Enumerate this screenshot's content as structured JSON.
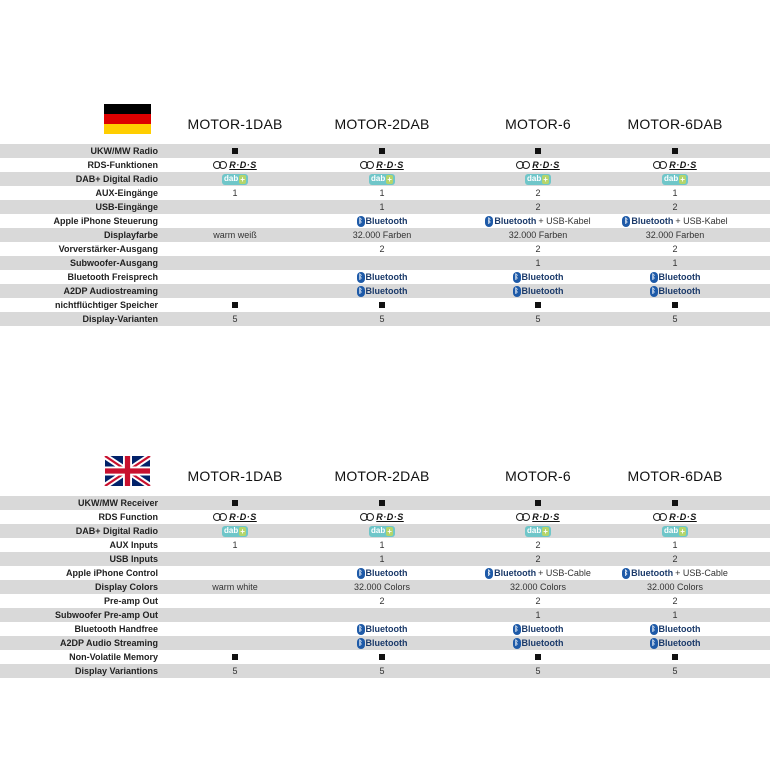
{
  "icons": {
    "square": "square-bullet-icon",
    "rds": "rds-logo-icon",
    "dab": "dab-plus-logo-icon",
    "bluetooth": "bluetooth-logo-icon"
  },
  "logo_text": {
    "rds": "R·D·S",
    "dab": "dab",
    "dab_plus": "+",
    "bluetooth": "Bluetooth"
  },
  "colors": {
    "row_shade": "#d9d9d9",
    "dab": "#6fc6c9",
    "bluetooth": "#1e5aa8"
  },
  "tables": [
    {
      "id": "de",
      "flag": "germany-flag-icon",
      "models": [
        "MOTOR-1DAB",
        "MOTOR-2DAB",
        "MOTOR-6",
        "MOTOR-6DAB"
      ],
      "rows": [
        {
          "label": "UKW/MW Radio",
          "cells": [
            {
              "t": "sq"
            },
            {
              "t": "sq"
            },
            {
              "t": "sq"
            },
            {
              "t": "sq"
            }
          ]
        },
        {
          "label": "RDS-Funktionen",
          "cells": [
            {
              "t": "rds"
            },
            {
              "t": "rds"
            },
            {
              "t": "rds"
            },
            {
              "t": "rds"
            }
          ]
        },
        {
          "label": "DAB+ Digital Radio",
          "cells": [
            {
              "t": "dab"
            },
            {
              "t": "dab"
            },
            {
              "t": "dab"
            },
            {
              "t": "dab"
            }
          ]
        },
        {
          "label": "AUX-Eingänge",
          "cells": [
            {
              "t": "text",
              "v": "1"
            },
            {
              "t": "text",
              "v": "1"
            },
            {
              "t": "text",
              "v": "2"
            },
            {
              "t": "text",
              "v": "1"
            }
          ]
        },
        {
          "label": "USB-Eingänge",
          "cells": [
            {
              "t": "empty"
            },
            {
              "t": "text",
              "v": "1"
            },
            {
              "t": "text",
              "v": "2"
            },
            {
              "t": "text",
              "v": "2"
            }
          ]
        },
        {
          "label": "Apple iPhone Steuerung",
          "cells": [
            {
              "t": "empty"
            },
            {
              "t": "bt"
            },
            {
              "t": "bt",
              "extra": "+ USB-Kabel"
            },
            {
              "t": "bt",
              "extra": "+ USB-Kabel"
            }
          ]
        },
        {
          "label": "Displayfarbe",
          "cells": [
            {
              "t": "text",
              "v": "warm weiß"
            },
            {
              "t": "text",
              "v": "32.000 Farben"
            },
            {
              "t": "text",
              "v": "32.000 Farben"
            },
            {
              "t": "text",
              "v": "32.000 Farben"
            }
          ]
        },
        {
          "label": "Vorverstärker-Ausgang",
          "cells": [
            {
              "t": "empty"
            },
            {
              "t": "text",
              "v": "2"
            },
            {
              "t": "text",
              "v": "2"
            },
            {
              "t": "text",
              "v": "2"
            }
          ]
        },
        {
          "label": "Subwoofer-Ausgang",
          "cells": [
            {
              "t": "empty"
            },
            {
              "t": "empty"
            },
            {
              "t": "text",
              "v": "1"
            },
            {
              "t": "text",
              "v": "1"
            }
          ]
        },
        {
          "label": "Bluetooth Freisprech",
          "cells": [
            {
              "t": "empty"
            },
            {
              "t": "bt"
            },
            {
              "t": "bt"
            },
            {
              "t": "bt"
            }
          ]
        },
        {
          "label": "A2DP Audiostreaming",
          "cells": [
            {
              "t": "empty"
            },
            {
              "t": "bt"
            },
            {
              "t": "bt"
            },
            {
              "t": "bt"
            }
          ]
        },
        {
          "label": "nichtflüchtiger Speicher",
          "cells": [
            {
              "t": "sq"
            },
            {
              "t": "sq"
            },
            {
              "t": "sq"
            },
            {
              "t": "sq"
            }
          ]
        },
        {
          "label": "Display-Varianten",
          "cells": [
            {
              "t": "text",
              "v": "5"
            },
            {
              "t": "text",
              "v": "5"
            },
            {
              "t": "text",
              "v": "5"
            },
            {
              "t": "text",
              "v": "5"
            }
          ]
        }
      ]
    },
    {
      "id": "en",
      "flag": "uk-flag-icon",
      "models": [
        "MOTOR-1DAB",
        "MOTOR-2DAB",
        "MOTOR-6",
        "MOTOR-6DAB"
      ],
      "rows": [
        {
          "label": "UKW/MW Receiver",
          "cells": [
            {
              "t": "sq"
            },
            {
              "t": "sq"
            },
            {
              "t": "sq"
            },
            {
              "t": "sq"
            }
          ]
        },
        {
          "label": "RDS Function",
          "cells": [
            {
              "t": "rds"
            },
            {
              "t": "rds"
            },
            {
              "t": "rds"
            },
            {
              "t": "rds"
            }
          ]
        },
        {
          "label": "DAB+ Digital Radio",
          "cells": [
            {
              "t": "dab"
            },
            {
              "t": "dab"
            },
            {
              "t": "dab"
            },
            {
              "t": "dab"
            }
          ]
        },
        {
          "label": "AUX Inputs",
          "cells": [
            {
              "t": "text",
              "v": "1"
            },
            {
              "t": "text",
              "v": "1"
            },
            {
              "t": "text",
              "v": "2"
            },
            {
              "t": "text",
              "v": "1"
            }
          ]
        },
        {
          "label": "USB Inputs",
          "cells": [
            {
              "t": "empty"
            },
            {
              "t": "text",
              "v": "1"
            },
            {
              "t": "text",
              "v": "2"
            },
            {
              "t": "text",
              "v": "2"
            }
          ]
        },
        {
          "label": "Apple iPhone Control",
          "cells": [
            {
              "t": "empty"
            },
            {
              "t": "bt"
            },
            {
              "t": "bt",
              "extra": "+ USB-Cable"
            },
            {
              "t": "bt",
              "extra": "+ USB-Cable"
            }
          ]
        },
        {
          "label": "Display Colors",
          "cells": [
            {
              "t": "text",
              "v": "warm white"
            },
            {
              "t": "text",
              "v": "32.000 Colors"
            },
            {
              "t": "text",
              "v": "32.000 Colors"
            },
            {
              "t": "text",
              "v": "32.000 Colors"
            }
          ]
        },
        {
          "label": "Pre-amp Out",
          "cells": [
            {
              "t": "empty"
            },
            {
              "t": "text",
              "v": "2"
            },
            {
              "t": "text",
              "v": "2"
            },
            {
              "t": "text",
              "v": "2"
            }
          ]
        },
        {
          "label": "Subwoofer Pre-amp Out",
          "cells": [
            {
              "t": "empty"
            },
            {
              "t": "empty"
            },
            {
              "t": "text",
              "v": "1"
            },
            {
              "t": "text",
              "v": "1"
            }
          ]
        },
        {
          "label": "Bluetooth Handfree",
          "cells": [
            {
              "t": "empty"
            },
            {
              "t": "bt"
            },
            {
              "t": "bt"
            },
            {
              "t": "bt"
            }
          ]
        },
        {
          "label": "A2DP Audio Streaming",
          "cells": [
            {
              "t": "empty"
            },
            {
              "t": "bt"
            },
            {
              "t": "bt"
            },
            {
              "t": "bt"
            }
          ]
        },
        {
          "label": "Non-Volatile Memory",
          "cells": [
            {
              "t": "sq"
            },
            {
              "t": "sq"
            },
            {
              "t": "sq"
            },
            {
              "t": "sq"
            }
          ]
        },
        {
          "label": "Display Variantions",
          "cells": [
            {
              "t": "text",
              "v": "5"
            },
            {
              "t": "text",
              "v": "5"
            },
            {
              "t": "text",
              "v": "5"
            },
            {
              "t": "text",
              "v": "5"
            }
          ]
        }
      ]
    }
  ]
}
